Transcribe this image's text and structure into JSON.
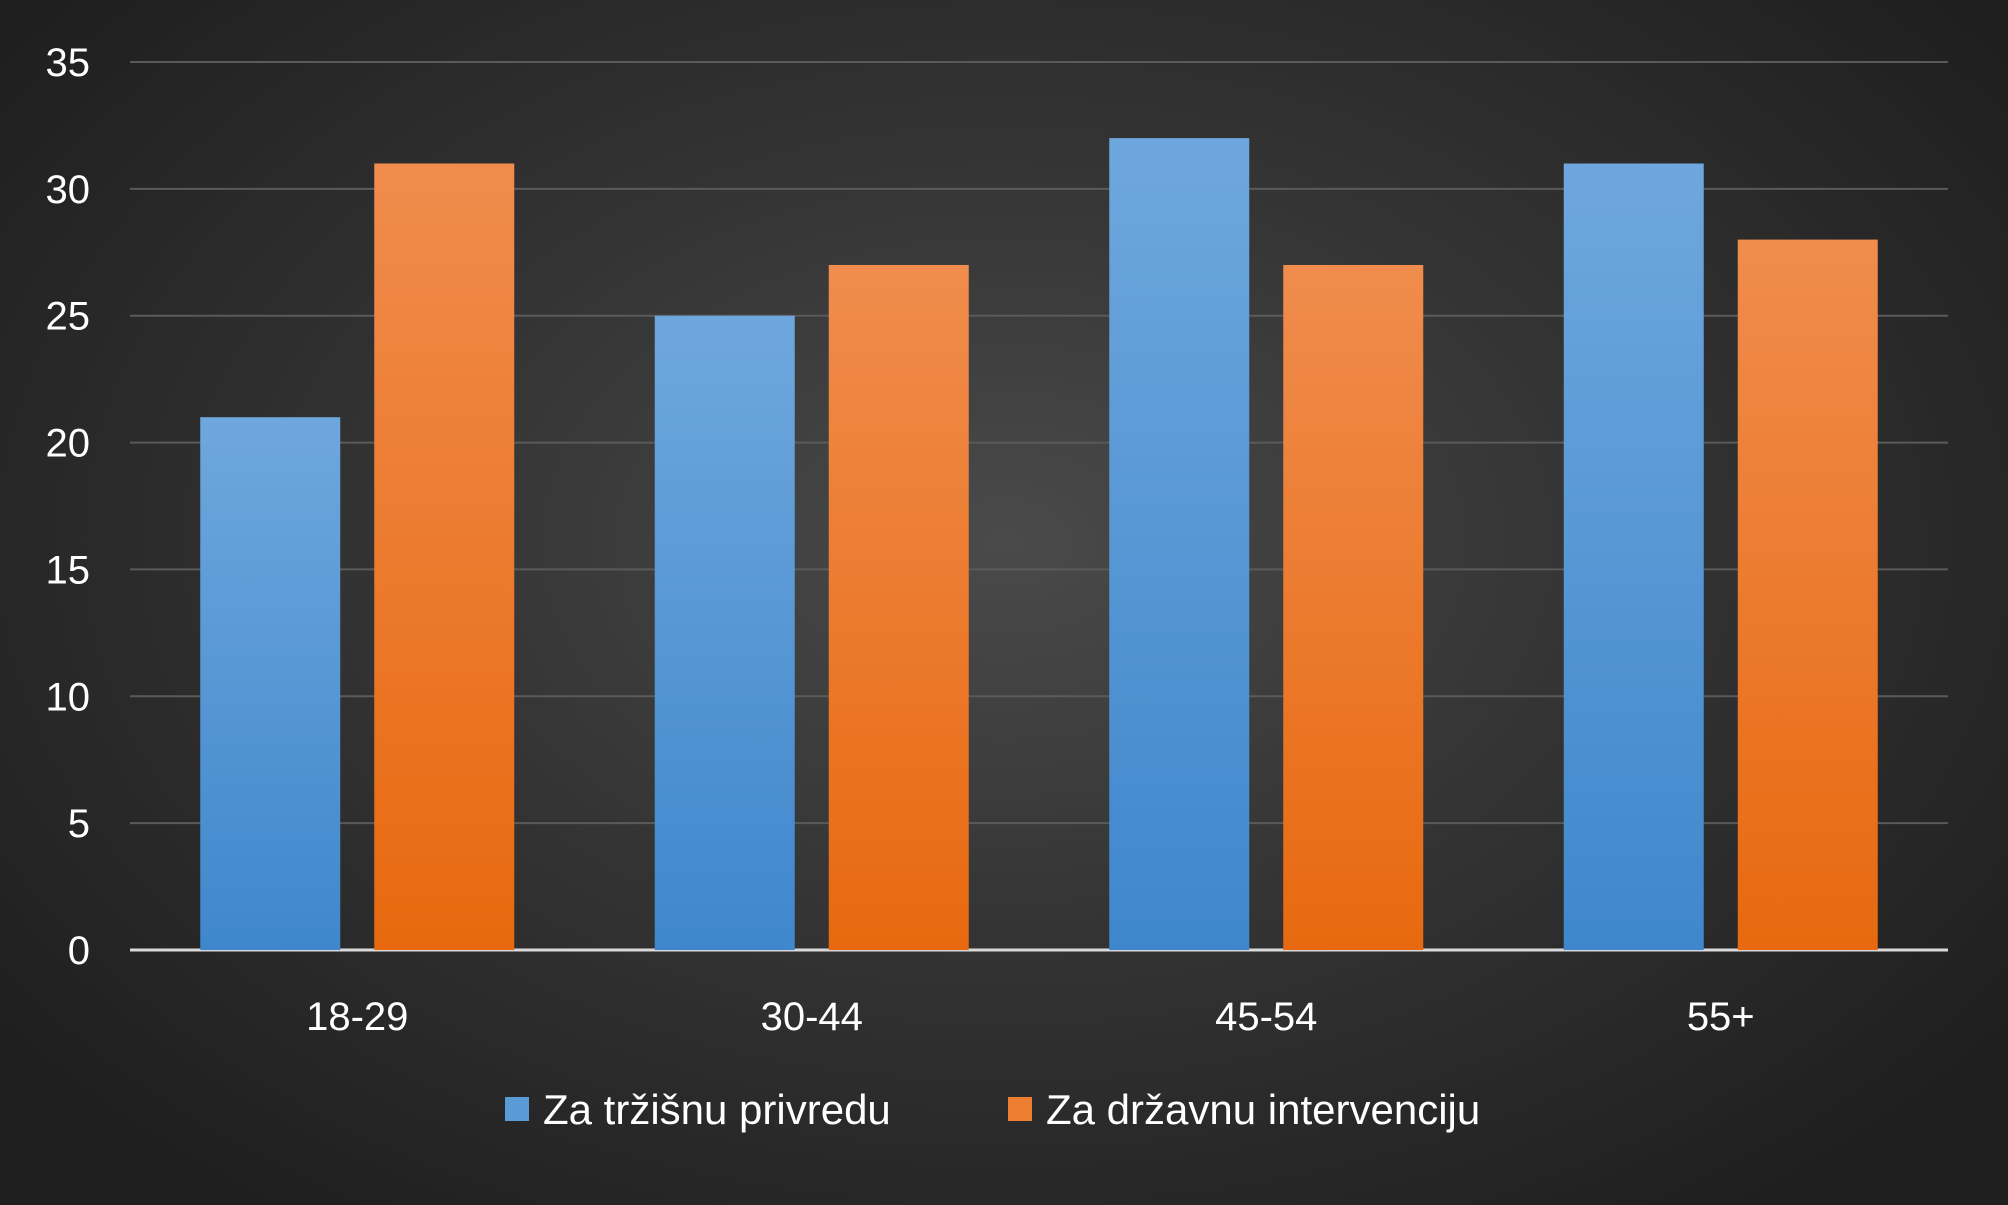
{
  "chart_data": {
    "type": "bar",
    "categories": [
      "18-29",
      "30-44",
      "45-54",
      "55+"
    ],
    "series": [
      {
        "name": "Za tržišnu privredu",
        "values": [
          21,
          25,
          32,
          31
        ],
        "color": "#5b9bd5"
      },
      {
        "name": "Za državnu intervenciju",
        "values": [
          31,
          27,
          27,
          28
        ],
        "color": "#ed7d31"
      }
    ],
    "ylim": [
      0,
      35
    ],
    "yticks": [
      0,
      5,
      10,
      15,
      20,
      25,
      30,
      35
    ],
    "grid": true,
    "legend": "bottom"
  }
}
